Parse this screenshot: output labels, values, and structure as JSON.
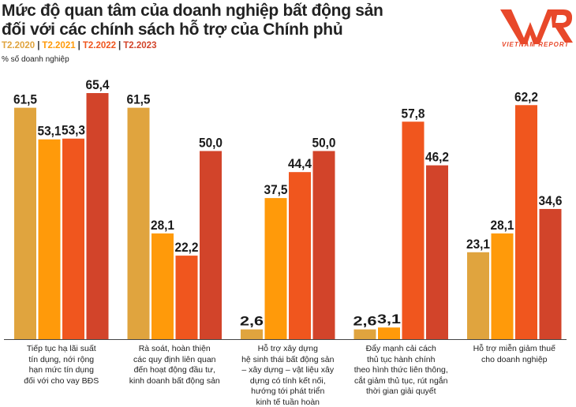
{
  "title_line1": "Mức độ quan tâm của doanh nghiệp bất động sản",
  "title_line2": "đối với các chính sách hỗ trợ của Chính phủ",
  "unit_label": "% số doanh nghiệp",
  "logo_text": "VNR",
  "logo_subtitle": "VIETNAM REPORT",
  "colors": {
    "T2.2020": "#E0A43E",
    "T2.2021": "#FF9A0A",
    "T2.2022": "#F0561E",
    "T2.2023": "#D2442A",
    "logo": "#E8482A"
  },
  "chart_data": {
    "type": "bar",
    "title": "Mức độ quan tâm của doanh nghiệp bất động sản đối với các chính sách hỗ trợ của Chính phủ",
    "ylabel": "% số doanh nghiệp",
    "ylim": [
      0,
      66
    ],
    "grid": false,
    "legend_placement": "top-left",
    "categories": [
      [
        "Tiếp tục hạ lãi suất",
        "tín dụng, nới rộng",
        "hạn mức tín dụng",
        "đối với cho vay BĐS"
      ],
      [
        "Rà soát, hoàn thiện",
        "các quy định liên quan",
        "đến hoạt động đầu tư,",
        "kinh doanh bất động sản"
      ],
      [
        "Hỗ trợ xây dựng",
        "hệ sinh thái bất động sản",
        "– xây dựng – vật liệu xây",
        "dựng có tính kết nối,",
        "hướng tới phát triển",
        "kinh tế tuần hoàn"
      ],
      [
        "Đẩy mạnh cải cách",
        "thủ tục hành chính",
        "theo hình thức liên thông,",
        "cắt giảm thủ tục, rút ngắn",
        "thời gian giải quyết"
      ],
      [
        "Hỗ trợ miễn giảm thuế",
        "cho doanh nghiệp"
      ]
    ],
    "series": [
      {
        "name": "T2.2020",
        "values": [
          61.5,
          61.5,
          2.6,
          2.6,
          23.1
        ],
        "labels": [
          "61,5",
          "61,5",
          "2,6",
          "2,6",
          "23,1"
        ]
      },
      {
        "name": "T2.2021",
        "values": [
          53.1,
          28.1,
          37.5,
          3.1,
          28.1
        ],
        "labels": [
          "53,1",
          "28,1",
          "37,5",
          "3,1",
          "28,1"
        ]
      },
      {
        "name": "T2.2022",
        "values": [
          53.3,
          22.2,
          44.4,
          57.8,
          62.2
        ],
        "labels": [
          "53,3",
          "22,2",
          "44,4",
          "57,8",
          "62,2"
        ]
      },
      {
        "name": "T2.2023",
        "values": [
          65.4,
          50.0,
          50.0,
          46.2,
          34.6
        ],
        "labels": [
          "65,4",
          "50,0",
          "50,0",
          "46,2",
          "34,6"
        ]
      }
    ]
  }
}
